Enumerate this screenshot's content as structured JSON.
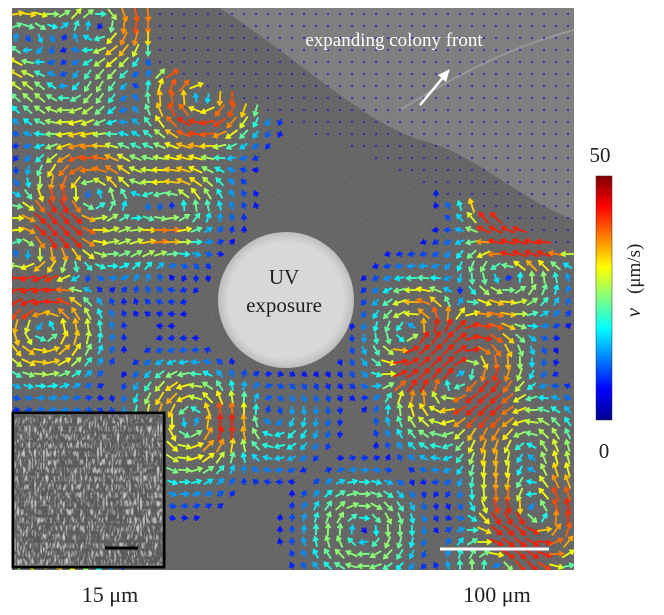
{
  "annotations": {
    "colony_front": "expanding colony front",
    "uv_line1": "UV",
    "uv_line2": "exposure"
  },
  "colorbar": {
    "max": 50,
    "min": 0,
    "variable": "v",
    "unit": "(μm/s)"
  },
  "scale_bars": {
    "inset": "15 μm",
    "main": "100 μm"
  }
}
